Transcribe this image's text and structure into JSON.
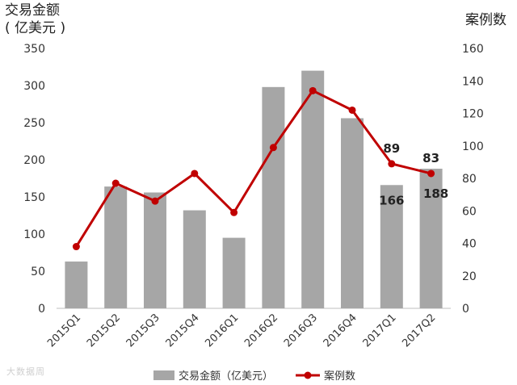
{
  "chart_data": {
    "type": "bar+line",
    "categories": [
      "2015Q1",
      "2015Q2",
      "2015Q3",
      "2015Q4",
      "2016Q1",
      "2016Q2",
      "2016Q3",
      "2016Q4",
      "2017Q1",
      "2017Q2"
    ],
    "series": [
      {
        "name": "交易金额（亿美元）",
        "type": "bar",
        "axis": "left",
        "color": "#a6a6a6",
        "values": [
          63,
          164,
          156,
          132,
          95,
          298,
          320,
          256,
          166,
          188
        ]
      },
      {
        "name": "案例数",
        "type": "line",
        "axis": "right",
        "color": "#c00000",
        "values": [
          38,
          77,
          66,
          83,
          59,
          99,
          134,
          122,
          89,
          83
        ]
      }
    ],
    "left_axis": {
      "title_line1": "交易金额",
      "title_line2": "( 亿美元 )",
      "ylim": [
        0,
        350
      ],
      "ticks": [
        "0",
        "50",
        "100",
        "150",
        "200",
        "250",
        "300",
        "350"
      ]
    },
    "right_axis": {
      "title": "案例数",
      "ylim": [
        0,
        160
      ],
      "ticks": [
        "0",
        "20",
        "40",
        "60",
        "80",
        "100",
        "120",
        "140",
        "160"
      ]
    },
    "annotations": [
      {
        "text": "166",
        "category": "2017Q1",
        "series": "bar"
      },
      {
        "text": "188",
        "category": "2017Q2",
        "series": "bar"
      },
      {
        "text": "89",
        "category": "2017Q1",
        "series": "line"
      },
      {
        "text": "83",
        "category": "2017Q2",
        "series": "line"
      }
    ],
    "legend": {
      "position": "bottom",
      "items": [
        "交易金额（亿美元）",
        "案例数"
      ]
    },
    "grid": false
  },
  "watermark": "大数据周"
}
